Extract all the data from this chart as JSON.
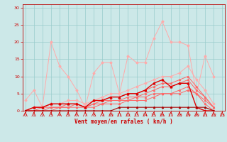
{
  "title": "",
  "xlabel": "Vent moyen/en rafales ( kn/h )",
  "bg_color": "#cce8e8",
  "grid_color": "#99cccc",
  "x": [
    0,
    1,
    2,
    3,
    4,
    5,
    6,
    7,
    8,
    9,
    10,
    11,
    12,
    13,
    14,
    15,
    16,
    17,
    18,
    19,
    20,
    21,
    22,
    23
  ],
  "line_light1": [
    3,
    6,
    1,
    20,
    13,
    10,
    6,
    1,
    11,
    14,
    14,
    5,
    16,
    14,
    14,
    21,
    26,
    20,
    20,
    19,
    5,
    16,
    10,
    null
  ],
  "line_light2": [
    0,
    1,
    1,
    2,
    2,
    3,
    3,
    2,
    3,
    4,
    5,
    5,
    6,
    7,
    8,
    9,
    10,
    10,
    11,
    13,
    9,
    6,
    2,
    null
  ],
  "line_med1": [
    0,
    1,
    1,
    2,
    2,
    2,
    2,
    1,
    3,
    3,
    4,
    4,
    5,
    5,
    6,
    7,
    8,
    8,
    9,
    10,
    7,
    4,
    1,
    null
  ],
  "line_med2": [
    0,
    0,
    1,
    1,
    1,
    2,
    2,
    1,
    2,
    3,
    3,
    3,
    4,
    4,
    5,
    6,
    7,
    7,
    8,
    9,
    6,
    4,
    1,
    null
  ],
  "line_med3": [
    0,
    0,
    0,
    1,
    1,
    1,
    2,
    1,
    2,
    2,
    3,
    3,
    3,
    4,
    4,
    5,
    5,
    5,
    6,
    7,
    5,
    3,
    1,
    null
  ],
  "line_med4": [
    0,
    0,
    0,
    0,
    1,
    1,
    1,
    1,
    1,
    2,
    2,
    2,
    3,
    3,
    3,
    4,
    5,
    5,
    5,
    6,
    5,
    2,
    0,
    null
  ],
  "line_dark": [
    0,
    1,
    1,
    2,
    2,
    2,
    2,
    1,
    3,
    3,
    4,
    4,
    5,
    5,
    6,
    8,
    9,
    7,
    8,
    8,
    1,
    0,
    0,
    null
  ],
  "line_darkest": [
    0,
    0,
    0,
    0,
    0,
    0,
    0,
    0,
    0,
    0,
    0,
    1,
    1,
    1,
    1,
    1,
    1,
    1,
    1,
    1,
    1,
    1,
    0,
    null
  ],
  "light_pink": "#ffaaaa",
  "medium_red": "#ff6666",
  "dark_red": "#dd0000",
  "darkest_red": "#aa0000",
  "xlim": [
    -0.3,
    23.3
  ],
  "ylim": [
    0,
    31
  ],
  "yticks": [
    0,
    5,
    10,
    15,
    20,
    25,
    30
  ],
  "xticks": [
    0,
    1,
    2,
    3,
    4,
    5,
    6,
    7,
    8,
    9,
    10,
    11,
    12,
    13,
    14,
    15,
    16,
    17,
    18,
    19,
    20,
    21,
    22,
    23
  ]
}
